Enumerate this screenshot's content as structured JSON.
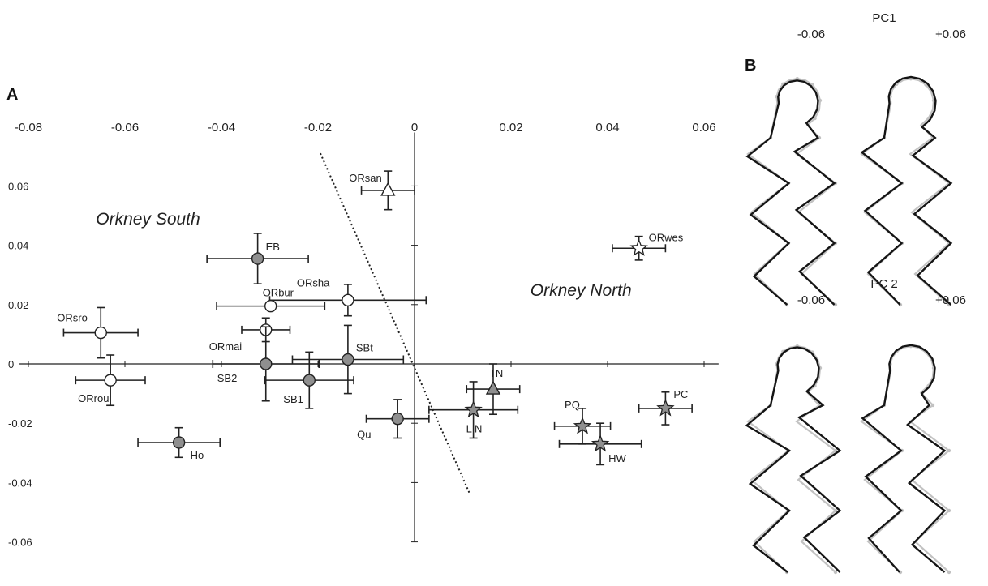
{
  "chart_data": {
    "type": "scatter",
    "panel_a_label": "A",
    "panel_b_label": "B",
    "x_ticks": [
      -0.08,
      -0.06,
      -0.04,
      -0.02,
      0,
      0.02,
      0.04,
      0.06
    ],
    "x_tick_labels": [
      "-0.08",
      "-0.06",
      "-0.04",
      "-0.02",
      "0",
      "0.02",
      "0.04",
      "0.06"
    ],
    "y_ticks": [
      0.06,
      0.04,
      0.02,
      0,
      -0.02,
      -0.04,
      -0.06
    ],
    "y_tick_labels": [
      "0.06",
      "0.04",
      "0.02",
      "0",
      "-0.02",
      "-0.04",
      "-0.06"
    ],
    "xlim": [
      -0.082,
      0.063
    ],
    "ylim": [
      -0.06,
      0.078
    ],
    "regions": [
      {
        "label": "Orkney South",
        "x": -0.066,
        "y": 0.047
      },
      {
        "label": "Orkney North",
        "x": 0.024,
        "y": 0.023
      }
    ],
    "divider_line": {
      "x1": -0.0195,
      "y1": 0.071,
      "x2": 0.0115,
      "y2": -0.044
    },
    "points": [
      {
        "label": "ORsan",
        "x": -0.0055,
        "y": 0.0585,
        "xerr": 0.0055,
        "yerr": 0.0065,
        "marker": "triangle",
        "fill": "#ffffff"
      },
      {
        "label": "ORwes",
        "x": 0.0465,
        "y": 0.039,
        "xerr": 0.0055,
        "yerr": 0.004,
        "marker": "star",
        "fill": "#ffffff"
      },
      {
        "label": "EB",
        "x": -0.0325,
        "y": 0.0355,
        "xerr": 0.0105,
        "yerr": 0.0085,
        "marker": "circle",
        "fill": "#8f8f8f"
      },
      {
        "label": "ORsha",
        "x": -0.0138,
        "y": 0.0215,
        "xerr": 0.0162,
        "yerr": 0.0053,
        "marker": "circle",
        "fill": "#ffffff"
      },
      {
        "label": "ORbur",
        "x": -0.0298,
        "y": 0.0195,
        "xerr": 0.0112,
        "yerr": 0.0008,
        "marker": "circle",
        "fill": "#ffffff"
      },
      {
        "label": "ORsro",
        "x": -0.065,
        "y": 0.0105,
        "xerr": 0.0077,
        "yerr": 0.0085,
        "marker": "circle",
        "fill": "#ffffff"
      },
      {
        "label": "ORmai",
        "x": -0.0308,
        "y": 0.0115,
        "xerr": 0.005,
        "yerr": 0.004,
        "marker": "circle",
        "fill": "#ffffff"
      },
      {
        "label": "SBt",
        "x": -0.0138,
        "y": 0.0015,
        "xerr": 0.0115,
        "yerr": 0.0115,
        "marker": "circle",
        "fill": "#8f8f8f"
      },
      {
        "label": "SB2",
        "x": -0.0308,
        "y": 0,
        "xerr": 0.011,
        "yerr": 0.0125,
        "marker": "circle",
        "fill": "#8f8f8f"
      },
      {
        "label": "SB1",
        "x": -0.0218,
        "y": -0.0055,
        "xerr": 0.0092,
        "yerr": 0.0095,
        "marker": "circle",
        "fill": "#8f8f8f"
      },
      {
        "label": "ORrou",
        "x": -0.063,
        "y": -0.0055,
        "xerr": 0.0072,
        "yerr": 0.0085,
        "marker": "circle",
        "fill": "#ffffff"
      },
      {
        "label": "Ho",
        "x": -0.0488,
        "y": -0.0265,
        "xerr": 0.0085,
        "yerr": 0.005,
        "marker": "circle",
        "fill": "#8f8f8f"
      },
      {
        "label": "Qu",
        "x": -0.0035,
        "y": -0.0185,
        "xerr": 0.0065,
        "yerr": 0.0065,
        "marker": "circle",
        "fill": "#8f8f8f"
      },
      {
        "label": "TN",
        "x": 0.0163,
        "y": -0.0085,
        "xerr": 0.0055,
        "yerr": 0.0085,
        "marker": "triangle",
        "fill": "#8f8f8f"
      },
      {
        "label": "L N",
        "x": 0.0122,
        "y": -0.0155,
        "xerr": 0.0092,
        "yerr": 0.0095,
        "marker": "star",
        "fill": "#8f8f8f"
      },
      {
        "label": "PQ",
        "x": 0.0348,
        "y": -0.021,
        "xerr": 0.0058,
        "yerr": 0.006,
        "marker": "star",
        "fill": "#8f8f8f"
      },
      {
        "label": "HW",
        "x": 0.0385,
        "y": -0.027,
        "xerr": 0.0085,
        "yerr": 0.007,
        "marker": "star",
        "fill": "#8f8f8f"
      },
      {
        "label": "PC",
        "x": 0.052,
        "y": -0.015,
        "xerr": 0.0055,
        "yerr": 0.0055,
        "marker": "star",
        "fill": "#8f8f8f"
      }
    ],
    "pc_panels": [
      {
        "title": "PC1",
        "left_label": "-0.06",
        "right_label": "+0.06"
      },
      {
        "title": "PC 2",
        "left_label": "-0.06",
        "right_label": "+0.06"
      }
    ],
    "colors": {
      "axis": "#222222",
      "marker_grey": "#8f8f8f",
      "shape_dark": "#151515",
      "shape_light": "#c2c2c2"
    }
  }
}
